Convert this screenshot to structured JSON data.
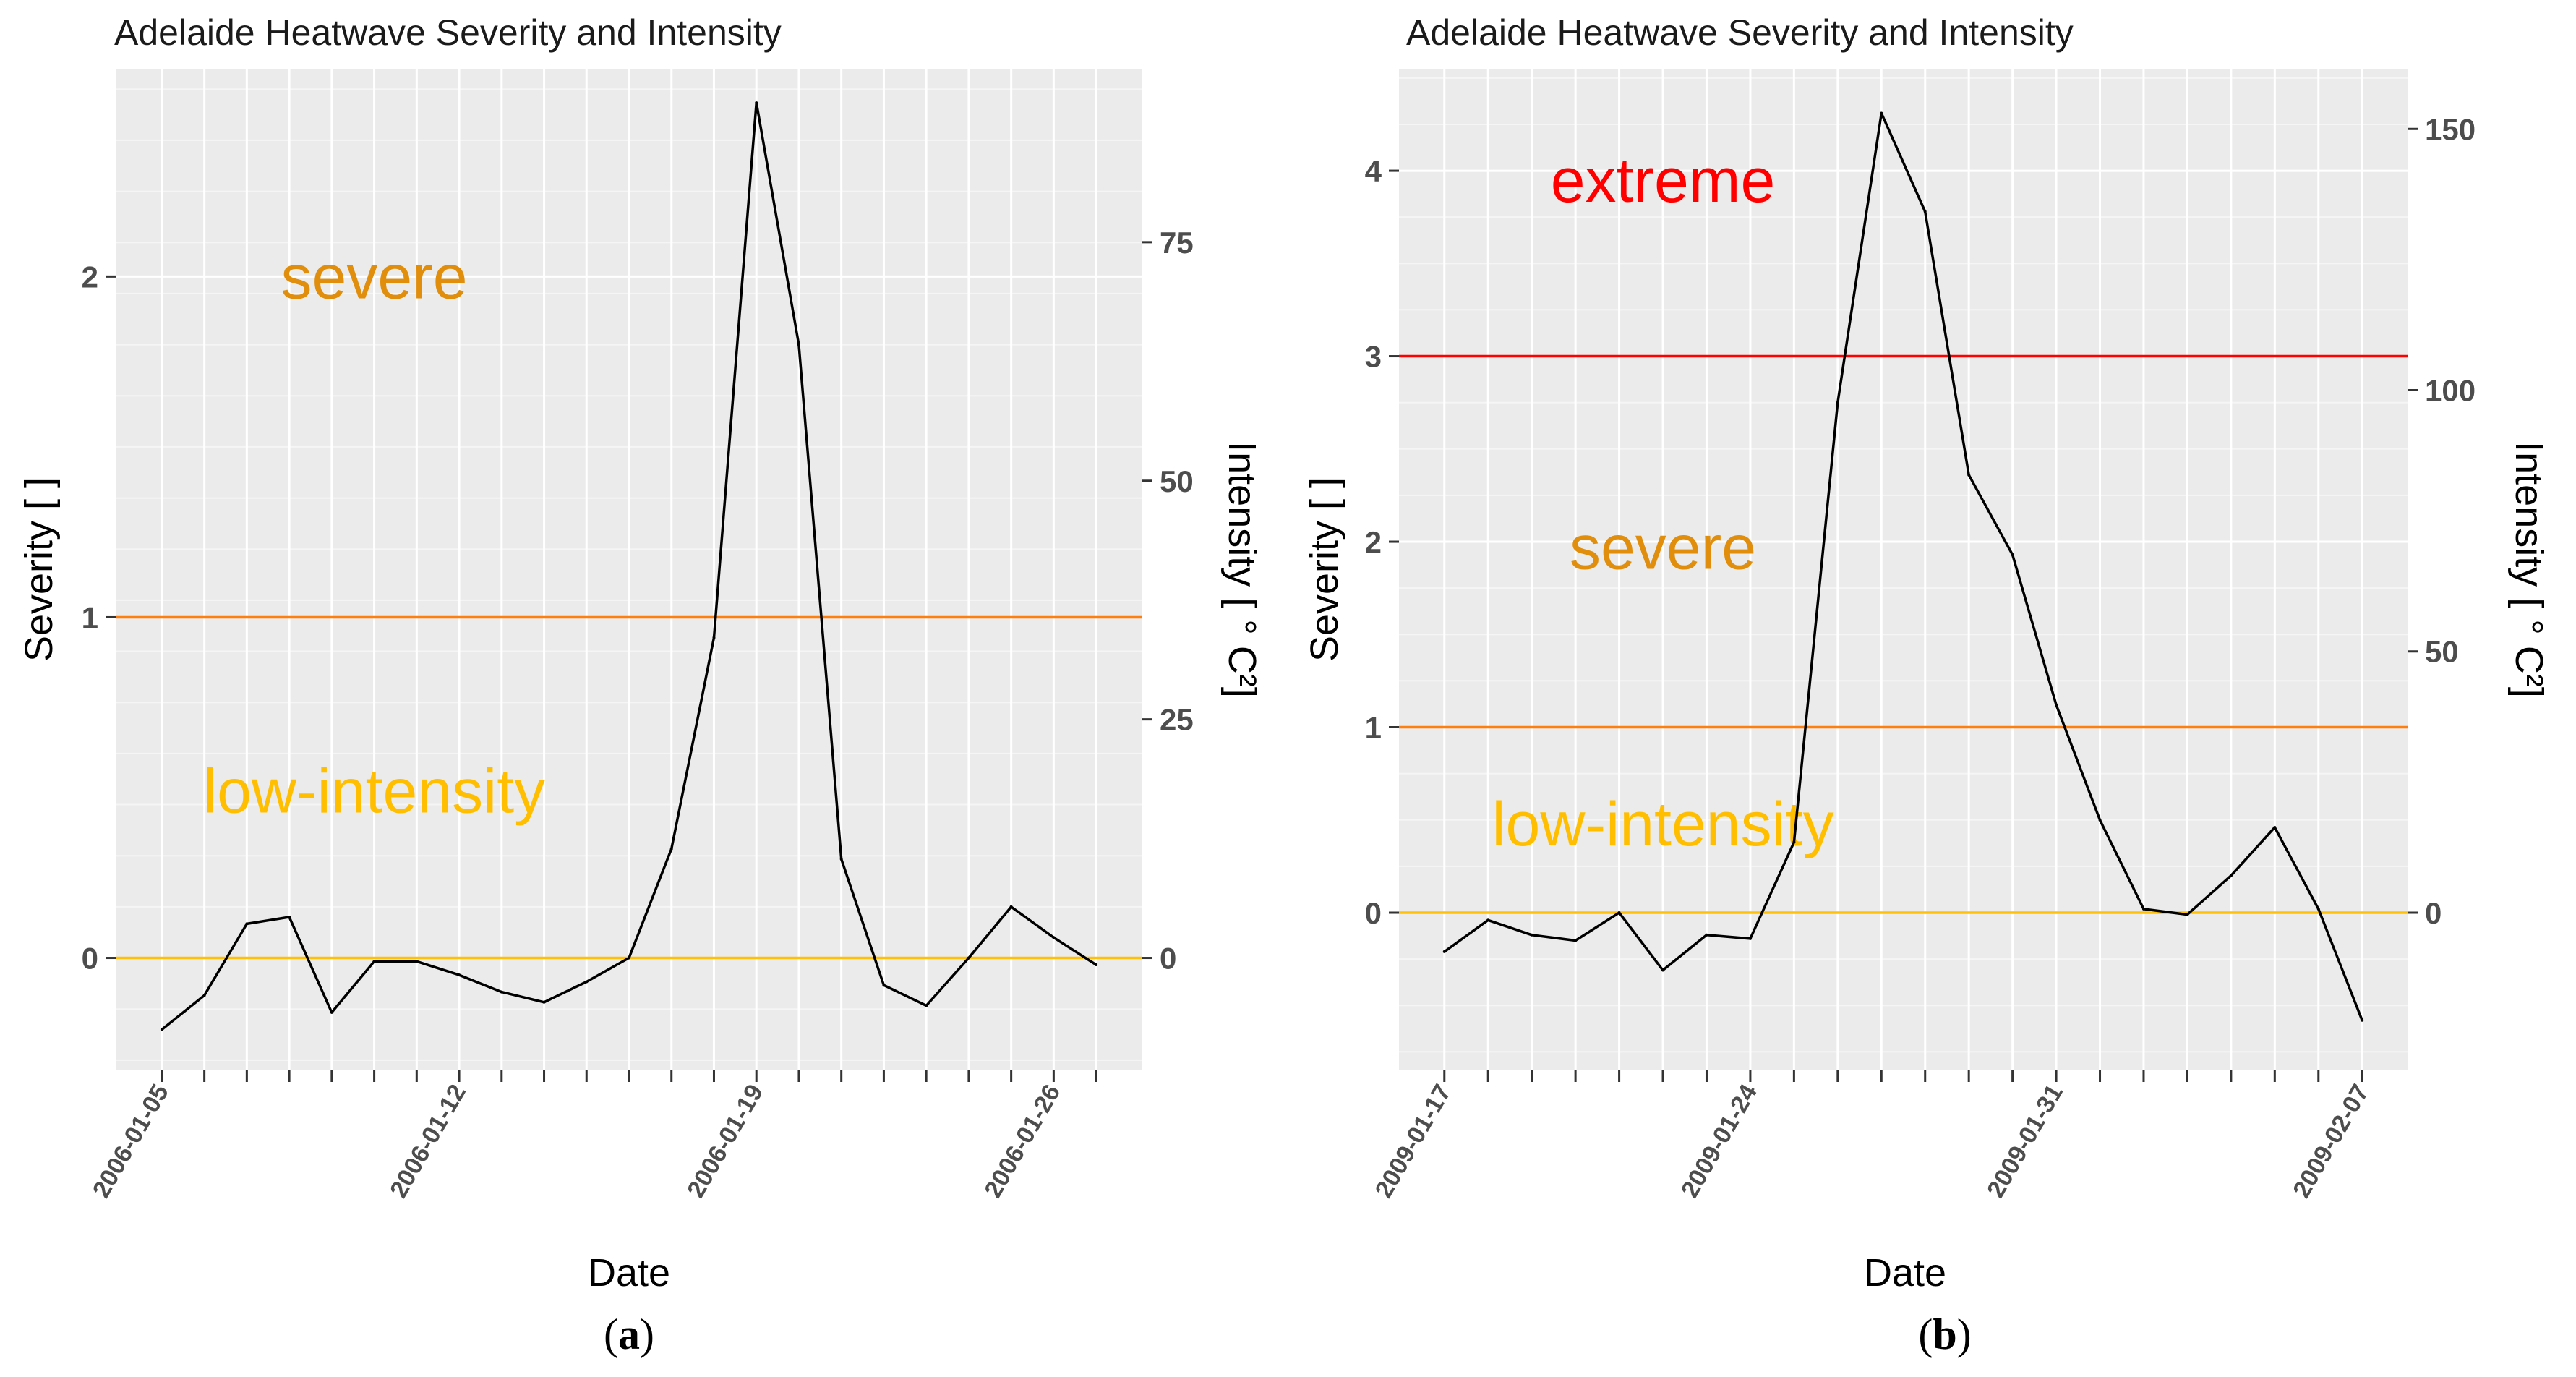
{
  "colors": {
    "panel_bg": "#ebebeb",
    "grid_major": "#ffffff",
    "extreme": "#ff0000",
    "severe": "#ff7f0e",
    "low_intensity": "#ffc107",
    "severe_label": "#e08e0b",
    "low_label": "#ffbf00",
    "line": "#000000"
  },
  "chart_data": [
    {
      "type": "line",
      "caption": "(a)",
      "caption_letter": "a",
      "title": "Adelaide Heatwave Severity and Intensity",
      "xlabel": "Date",
      "ylabel": "Severity [ ]",
      "ylabel2": "Intensity [ ° C²]",
      "ylim": [
        -0.33,
        2.61
      ],
      "x_count": 23,
      "x": [
        "2006-01-05",
        "2006-01-06",
        "2006-01-07",
        "2006-01-08",
        "2006-01-09",
        "2006-01-10",
        "2006-01-11",
        "2006-01-12",
        "2006-01-13",
        "2006-01-14",
        "2006-01-15",
        "2006-01-16",
        "2006-01-17",
        "2006-01-18",
        "2006-01-19",
        "2006-01-20",
        "2006-01-21",
        "2006-01-22",
        "2006-01-23",
        "2006-01-24",
        "2006-01-25",
        "2006-01-26",
        "2006-01-27"
      ],
      "values": [
        -0.21,
        -0.11,
        0.1,
        0.12,
        -0.16,
        -0.01,
        -0.01,
        -0.05,
        -0.1,
        -0.13,
        -0.07,
        0.0,
        0.32,
        0.94,
        2.51,
        1.8,
        0.29,
        -0.08,
        -0.14,
        0.0,
        0.15,
        0.06,
        -0.02
      ],
      "yticks": [
        0,
        1,
        2
      ],
      "xtick_labels": [
        {
          "index": 0,
          "label": "2006-01-05"
        },
        {
          "index": 7,
          "label": "2006-01-12"
        },
        {
          "index": 14,
          "label": "2006-01-19"
        },
        {
          "index": 21,
          "label": "2006-01-26"
        }
      ],
      "secondary_axis": {
        "scale": 35.7,
        "ticks": [
          0,
          25,
          50,
          75
        ]
      },
      "thresholds": [
        {
          "value": 1,
          "color": "#ff7f0e"
        },
        {
          "value": 0,
          "color": "#ffc107"
        }
      ],
      "zone_labels": [
        {
          "text": "severe",
          "color": "#e08e0b",
          "x_index": 5,
          "y": 2.0
        },
        {
          "text": "low-intensity",
          "color": "#ffbf00",
          "x_index": 5,
          "y": 0.49
        }
      ]
    },
    {
      "type": "line",
      "caption": "(b)",
      "caption_letter": "b",
      "title": "Adelaide Heatwave Severity and Intensity",
      "xlabel": "Date",
      "ylabel": "Severity [ ]",
      "ylabel2": "Intensity [ ° C²]",
      "ylim": [
        -0.85,
        4.55
      ],
      "x_count": 22,
      "x": [
        "2009-01-17",
        "2009-01-18",
        "2009-01-19",
        "2009-01-20",
        "2009-01-21",
        "2009-01-22",
        "2009-01-23",
        "2009-01-24",
        "2009-01-25",
        "2009-01-26",
        "2009-01-27",
        "2009-01-28",
        "2009-01-29",
        "2009-01-30",
        "2009-01-31",
        "2009-02-01",
        "2009-02-02",
        "2009-02-03",
        "2009-02-04",
        "2009-02-05",
        "2009-02-06",
        "2009-02-07"
      ],
      "values": [
        -0.21,
        -0.04,
        -0.12,
        -0.15,
        0.0,
        -0.31,
        -0.12,
        -0.14,
        0.38,
        2.75,
        4.31,
        3.78,
        2.36,
        1.93,
        1.12,
        0.5,
        0.02,
        -0.01,
        0.2,
        0.46,
        0.02,
        -0.58
      ],
      "yticks": [
        0,
        1,
        2,
        3,
        4
      ],
      "xtick_labels": [
        {
          "index": 0,
          "label": "2009-01-17"
        },
        {
          "index": 7,
          "label": "2009-01-24"
        },
        {
          "index": 14,
          "label": "2009-01-31"
        },
        {
          "index": 21,
          "label": "2009-02-07"
        }
      ],
      "secondary_axis": {
        "scale": 35.5,
        "ticks": [
          0,
          50,
          100,
          150
        ]
      },
      "thresholds": [
        {
          "value": 3,
          "color": "#ff0000"
        },
        {
          "value": 1,
          "color": "#ff7f0e"
        },
        {
          "value": 0,
          "color": "#ffc107"
        }
      ],
      "zone_labels": [
        {
          "text": "extreme",
          "color": "#ff0000",
          "x_index": 5,
          "y": 3.95
        },
        {
          "text": "severe",
          "color": "#e08e0b",
          "x_index": 5,
          "y": 1.97
        },
        {
          "text": "low-intensity",
          "color": "#ffbf00",
          "x_index": 5,
          "y": 0.48
        }
      ]
    }
  ]
}
